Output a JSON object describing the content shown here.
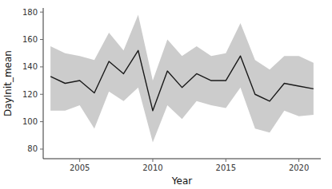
{
  "chart_data": {
    "type": "line",
    "x": [
      2003,
      2004,
      2005,
      2006,
      2007,
      2008,
      2009,
      2010,
      2011,
      2012,
      2013,
      2014,
      2015,
      2016,
      2017,
      2018,
      2019,
      2020,
      2021
    ],
    "values": [
      133,
      128,
      130,
      121,
      144,
      135,
      152,
      108,
      137,
      125,
      135,
      130,
      130,
      148,
      120,
      115,
      128,
      126,
      124
    ],
    "upper": [
      155,
      150,
      148,
      145,
      165,
      152,
      178,
      130,
      160,
      148,
      155,
      148,
      150,
      172,
      145,
      138,
      148,
      148,
      143
    ],
    "lower": [
      108,
      108,
      112,
      95,
      122,
      115,
      125,
      85,
      112,
      102,
      115,
      112,
      110,
      125,
      95,
      92,
      108,
      104,
      105
    ],
    "color": "#1a1a1a",
    "xlim": [
      2002.5,
      2021.5
    ],
    "ylim": [
      73,
      183
    ],
    "xticks": [
      2005,
      2010,
      2015,
      2020
    ],
    "yticks": [
      80,
      100,
      120,
      140,
      160,
      180
    ],
    "xlabel": "Year",
    "ylabel": "DayInit_mean"
  }
}
